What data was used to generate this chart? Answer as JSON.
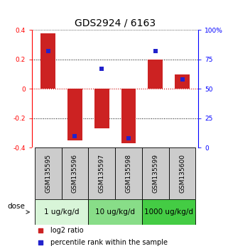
{
  "title": "GDS2924 / 6163",
  "samples": [
    "GSM135595",
    "GSM135596",
    "GSM135597",
    "GSM135598",
    "GSM135599",
    "GSM135600"
  ],
  "log2_ratio": [
    0.38,
    -0.35,
    -0.27,
    -0.37,
    0.2,
    0.1
  ],
  "percentile": [
    82,
    10,
    67,
    8,
    82,
    58
  ],
  "ylim_left": [
    -0.4,
    0.4
  ],
  "ylim_right": [
    0,
    100
  ],
  "yticks_left": [
    -0.4,
    -0.2,
    0.0,
    0.2,
    0.4
  ],
  "ytick_labels_left": [
    "-0.4",
    "-0.2",
    "0",
    "0.2",
    "0.4"
  ],
  "yticks_right": [
    0,
    25,
    50,
    75,
    100
  ],
  "ytick_labels_right": [
    "0",
    "25",
    "50",
    "75",
    "100%"
  ],
  "bar_color": "#cc2222",
  "square_color": "#2222cc",
  "bar_width": 0.55,
  "square_size": 18,
  "dose_groups": [
    {
      "label": "1 ug/kg/d",
      "samples": [
        0,
        1
      ],
      "color": "#d8f5d8"
    },
    {
      "label": "10 ug/kg/d",
      "samples": [
        2,
        3
      ],
      "color": "#88dd88"
    },
    {
      "label": "1000 ug/kg/d",
      "samples": [
        4,
        5
      ],
      "color": "#44cc44"
    }
  ],
  "legend_red_label": "log2 ratio",
  "legend_blue_label": "percentile rank within the sample",
  "zero_line_color": "#cc0000",
  "sample_box_color": "#cccccc",
  "dose_label": "dose",
  "title_fontsize": 10,
  "tick_fontsize": 6.5,
  "label_fontsize": 7,
  "dose_fontsize": 7.5
}
